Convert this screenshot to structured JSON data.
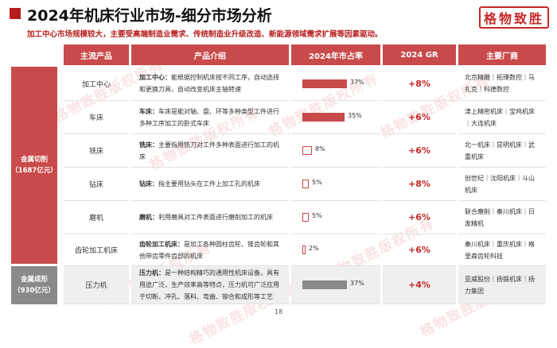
{
  "title": "2024年机床行业市场-细分市场分析",
  "subtitle": "加工中心市场规模较大，主要受高端制造业需求、传统制造业升级改造、新能源领域需求扩展等因素驱动。",
  "logo_text": "格物致胜",
  "watermark_text": "格物致胜版权所有",
  "headers": [
    "主流产品",
    "产品介绍",
    "2024年市占率",
    "2024 GR",
    "主要厂商"
  ],
  "categories": [
    {
      "label": "金属切削",
      "sub": "（1687亿元）"
    },
    {
      "label": "金属成形",
      "sub": "（930亿元）"
    }
  ],
  "rows": [
    {
      "product": "加工中心",
      "intro_bold": "加工中心：",
      "intro": "能根据控制机床按不同工序，自动选择和更换刀具，自动改变机床主轴转速",
      "share": 37,
      "share_label": "37%",
      "cagr": "+8%",
      "makers": "北京精雕｜拓璞数控｜马扎克｜科德数控"
    },
    {
      "product": "车床",
      "intro_bold": "车床：",
      "intro": "车床是能对轴、盘、环等多种类型工件进行多种工序加工的卧式车床",
      "share": 35,
      "share_label": "35%",
      "cagr": "+6%",
      "makers": "津上精密机床｜宝鸡机床｜大连机床"
    },
    {
      "product": "铣床",
      "intro_bold": "铣床：",
      "intro": "主要指用铣刀对工件多种表面进行加工的机床",
      "share": 8,
      "share_label": "8%",
      "cagr": "+6%",
      "makers": "北一机床｜昆明机床｜武重机床"
    },
    {
      "product": "钻床",
      "intro_bold": "钻床：",
      "intro": "指主要用钻头在工件上加工孔的机床",
      "share": 5,
      "share_label": "5%",
      "cagr": "+8%",
      "makers": "创世纪｜沈阳机床｜斗山机床"
    },
    {
      "product": "磨机",
      "intro_bold": "磨机：",
      "intro": "利用磨具对工件表面进行磨削加工的机床",
      "share": 5,
      "share_label": "5%",
      "cagr": "+6%",
      "makers": "联合磨削｜秦川机床｜日发精机"
    },
    {
      "product": "齿轮加工机床",
      "intro_bold": "齿轮加工机床：",
      "intro": "是加工各种圆柱齿轮、锥齿轮和其他带齿零件齿部的机床",
      "share": 2,
      "share_label": "2%",
      "cagr": "+6%",
      "makers": "秦川机床｜重庆机床｜格里森齿轮科技"
    },
    {
      "product": "压力机",
      "intro_bold": "压力机：",
      "intro": "是一种结构精巧的通用性机床设备，具有用途广泛，生产效率高等特点，压力机可广泛应用于切断、冲孔、落料、弯曲、铆合和成形等工艺",
      "share": 37,
      "share_label": "37%",
      "cagr": "+4%",
      "makers": "亚威股份｜扬锻机床｜扬力集团"
    }
  ],
  "page_number": "18",
  "colors": {
    "accent": "#c94a4a",
    "dark_red": "#b71c1c",
    "grey": "#8a8a8a"
  }
}
